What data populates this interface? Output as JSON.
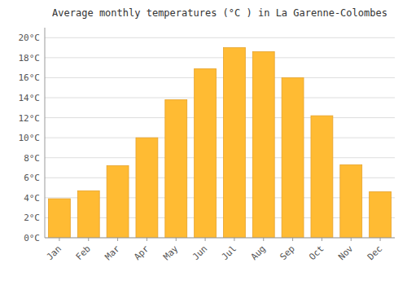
{
  "chart_data": {
    "type": "bar",
    "title": "Average monthly temperatures (°C ) in La Garenne-Colombes",
    "categories": [
      "Jan",
      "Feb",
      "Mar",
      "Apr",
      "May",
      "Jun",
      "Jul",
      "Aug",
      "Sep",
      "Oct",
      "Nov",
      "Dec"
    ],
    "values": [
      3.9,
      4.7,
      7.2,
      10.0,
      13.8,
      16.9,
      19.0,
      18.6,
      16.0,
      12.2,
      7.3,
      4.6
    ],
    "color": "#FFBB33",
    "ylim": [
      0,
      21
    ],
    "yticks": [
      {
        "value": 0,
        "label": "0°C"
      },
      {
        "value": 2,
        "label": "2°C"
      },
      {
        "value": 4,
        "label": "4°C"
      },
      {
        "value": 6,
        "label": "6°C"
      },
      {
        "value": 8,
        "label": "8°C"
      },
      {
        "value": 10,
        "label": "10°C"
      },
      {
        "value": 12,
        "label": "12°C"
      },
      {
        "value": 14,
        "label": "14°C"
      },
      {
        "value": 16,
        "label": "16°C"
      },
      {
        "value": 18,
        "label": "18°C"
      },
      {
        "value": 20,
        "label": "20°C"
      }
    ],
    "grid": true
  }
}
